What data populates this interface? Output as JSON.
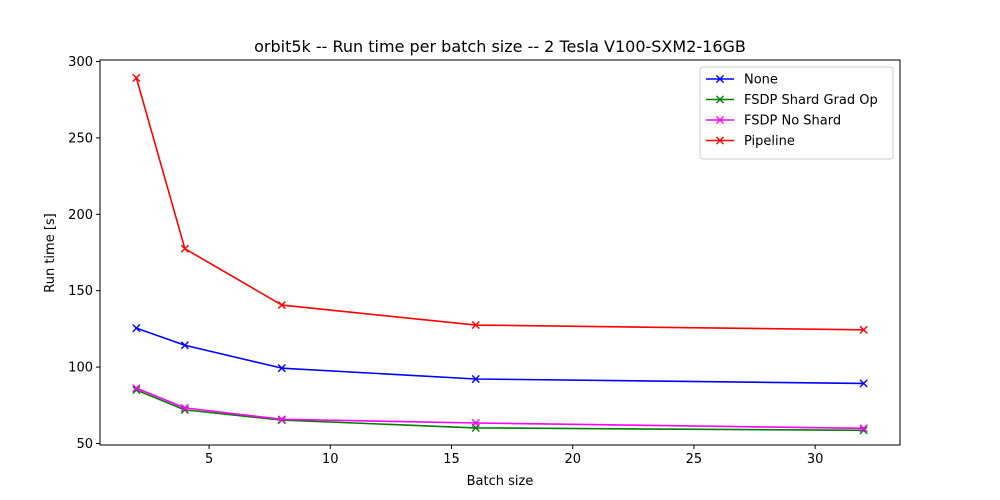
{
  "chart_data": {
    "type": "line",
    "title": "orbit5k -- Run time per batch size -- 2 Tesla V100-SXM2-16GB",
    "xlabel": "Batch size",
    "ylabel": "Run time [s]",
    "xlim": [
      0.5,
      33.5
    ],
    "ylim": [
      49,
      301
    ],
    "xticks": [
      5,
      10,
      15,
      20,
      25,
      30
    ],
    "yticks": [
      50,
      100,
      150,
      200,
      250,
      300
    ],
    "grid": false,
    "legend_position": "top-right",
    "x": [
      2,
      4,
      8,
      16,
      32
    ],
    "series": [
      {
        "name": "None",
        "color": "#0000ff",
        "marker": "x",
        "values": [
          125.5,
          114.3,
          99.3,
          92.2,
          89.3
        ]
      },
      {
        "name": "FSDP Shard Grad Op",
        "color": "#008000",
        "marker": "x",
        "values": [
          85.0,
          72.0,
          65.3,
          60.2,
          58.6
        ]
      },
      {
        "name": "FSDP No Shard",
        "color": "#ff00ff",
        "marker": "x",
        "values": [
          86.2,
          73.3,
          65.8,
          63.4,
          59.9
        ]
      },
      {
        "name": "Pipeline",
        "color": "#ff0000",
        "marker": "x",
        "values": [
          289.3,
          177.5,
          140.6,
          127.5,
          124.4
        ]
      }
    ]
  }
}
